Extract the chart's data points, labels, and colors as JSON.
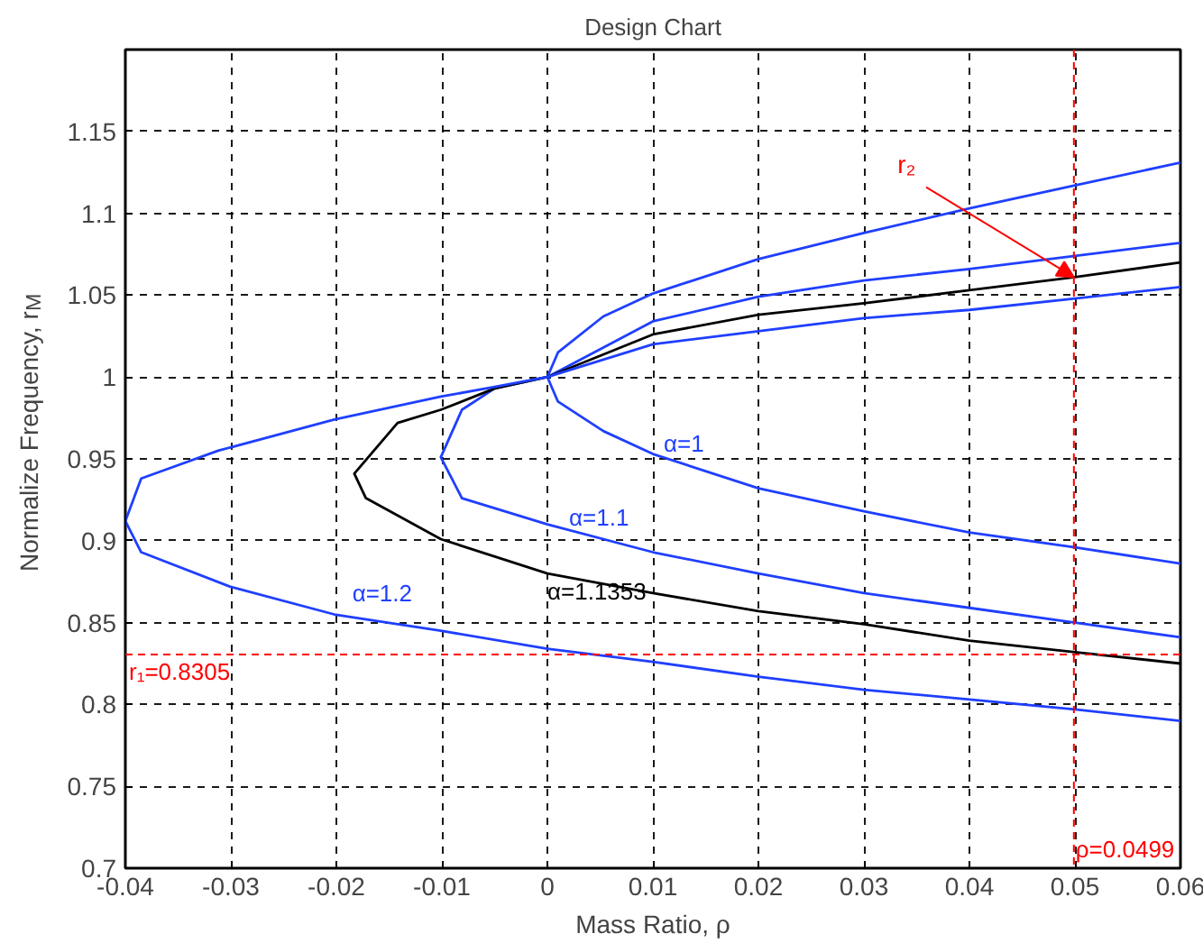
{
  "chart_data": {
    "type": "line",
    "title": "Design Chart",
    "xlabel": "Mass Ratio, ρ",
    "ylabel": "Normalize Frequency, r$_{M}$",
    "xlim": [
      -0.04,
      0.06
    ],
    "ylim": [
      0.7,
      1.2
    ],
    "xticks": [
      -0.04,
      -0.03,
      -0.02,
      -0.01,
      0,
      0.01,
      0.02,
      0.03,
      0.04,
      0.05,
      0.06
    ],
    "yticks": [
      0.7,
      0.75,
      0.8,
      0.85,
      0.9,
      0.95,
      1,
      1.05,
      1.1,
      1.15
    ],
    "grid": true,
    "line_style": "solid",
    "series": [
      {
        "name": "α=1",
        "color": "#1f3fff",
        "x": [
          0.06,
          0.05,
          0.04,
          0.03,
          0.02,
          0.01,
          0.0053,
          0.001,
          0,
          0.001,
          0.0053,
          0.01,
          0.02,
          0.03,
          0.04,
          0.05,
          0.06
        ],
        "values": [
          0.886,
          0.896,
          0.905,
          0.918,
          0.932,
          0.953,
          0.967,
          0.985,
          1,
          1.015,
          1.037,
          1.051,
          1.072,
          1.088,
          1.103,
          1.117,
          1.131
        ]
      },
      {
        "name": "α=1.1",
        "color": "#1f3fff",
        "x": [
          0.06,
          0.05,
          0.04,
          0.03,
          0.02,
          0.01,
          0,
          -0.0081,
          -0.0101,
          -0.0081,
          -0.005,
          0,
          0.01,
          0.02,
          0.03,
          0.04,
          0.05,
          0.06
        ],
        "values": [
          0.841,
          0.85,
          0.859,
          0.868,
          0.88,
          0.893,
          0.91,
          0.926,
          0.951,
          0.98,
          0.993,
          1,
          1.034,
          1.049,
          1.059,
          1.066,
          1.074,
          1.082
        ]
      },
      {
        "name": "α=1.1353",
        "color": "#000000",
        "x": [
          0.06,
          0.05,
          0.04,
          0.03,
          0.02,
          0.01,
          0,
          -0.0101,
          -0.0172,
          -0.0183,
          -0.0142,
          -0.0101,
          -0.005,
          0,
          0.01,
          0.02,
          0.03,
          0.04,
          0.05,
          0.06
        ],
        "values": [
          0.825,
          0.832,
          0.839,
          0.849,
          0.857,
          0.868,
          0.88,
          0.901,
          0.926,
          0.941,
          0.972,
          0.98,
          0.993,
          1,
          1.026,
          1.038,
          1.045,
          1.053,
          1.061,
          1.07
        ]
      },
      {
        "name": "α=1.2",
        "color": "#1f3fff",
        "x": [
          0.06,
          0.05,
          0.04,
          0.03,
          0.02,
          0.01,
          0,
          -0.0101,
          -0.0202,
          -0.0301,
          -0.0385,
          -0.04,
          -0.0385,
          -0.0312,
          -0.0202,
          -0.0101,
          -0.005,
          0,
          0.01,
          0.02,
          0.03,
          0.04,
          0.05,
          0.06
        ],
        "values": [
          0.79,
          0.797,
          0.803,
          0.809,
          0.817,
          0.826,
          0.834,
          0.845,
          0.855,
          0.872,
          0.893,
          0.912,
          0.938,
          0.955,
          0.974,
          0.988,
          0.994,
          1,
          1.02,
          1.028,
          1.036,
          1.041,
          1.048,
          1.055
        ]
      }
    ],
    "ref_lines": [
      {
        "axis": "y",
        "value": 0.8305,
        "label": "r₁=0.8305",
        "color": "#ff0000",
        "line_style": "dashed"
      },
      {
        "axis": "x",
        "value": 0.0499,
        "label": "ρ=0.0499",
        "color": "#ff0000",
        "line_style": "dashed"
      }
    ],
    "annotations": [
      {
        "text": "r₂",
        "x": 0.0499,
        "y": 1.061
      }
    ]
  }
}
